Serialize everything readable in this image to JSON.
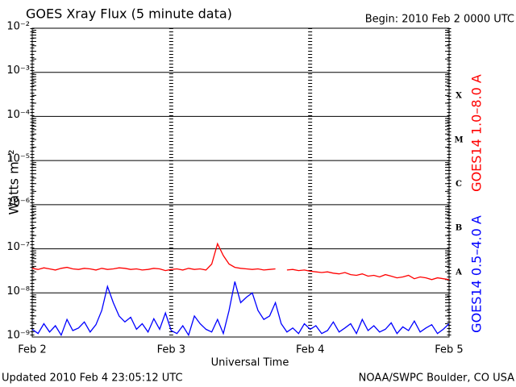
{
  "chart_data": {
    "type": "line",
    "title": "GOES Xray Flux (5 minute data)",
    "subtitle": "Begin:  2010 Feb 2 0000 UTC",
    "x_label": "Universal Time",
    "y_label": "Watts m⁻²",
    "footer_left": "Updated 2010 Feb  4 23:05:12 UTC",
    "footer_right": "NOAA/SWPC Boulder, CO USA",
    "flare_classes": [
      "A",
      "B",
      "C",
      "M",
      "X"
    ],
    "log_y": true,
    "grid": true,
    "ylim": [
      1e-09,
      0.01
    ],
    "yticks": [
      {
        "value": 1e-09,
        "label": "10⁻⁹"
      },
      {
        "value": 1e-08,
        "label": "10⁻⁸"
      },
      {
        "value": 1e-07,
        "label": "10⁻⁷"
      },
      {
        "value": 1e-06,
        "label": "10⁻⁶"
      },
      {
        "value": 1e-05,
        "label": "10⁻⁵"
      },
      {
        "value": 0.0001,
        "label": "10⁻⁴"
      },
      {
        "value": 0.001,
        "label": "10⁻³"
      },
      {
        "value": 0.01,
        "label": "10⁻²"
      }
    ],
    "xlim": [
      "2010-02-02 00:00",
      "2010-02-05 00:00"
    ],
    "xticks": [
      {
        "value": "2010-02-02 00:00",
        "label": "Feb 2"
      },
      {
        "value": "2010-02-03 00:00",
        "label": "Feb 3"
      },
      {
        "value": "2010-02-04 00:00",
        "label": "Feb 4"
      },
      {
        "value": "2010-02-05 00:00",
        "label": "Feb 5"
      }
    ],
    "x": [
      "2010-02-02 00:00",
      "2010-02-02 01:00",
      "2010-02-02 02:00",
      "2010-02-02 03:00",
      "2010-02-02 04:00",
      "2010-02-02 05:00",
      "2010-02-02 06:00",
      "2010-02-02 07:00",
      "2010-02-02 08:00",
      "2010-02-02 09:00",
      "2010-02-02 10:00",
      "2010-02-02 11:00",
      "2010-02-02 12:00",
      "2010-02-02 13:00",
      "2010-02-02 14:00",
      "2010-02-02 15:00",
      "2010-02-02 16:00",
      "2010-02-02 17:00",
      "2010-02-02 18:00",
      "2010-02-02 19:00",
      "2010-02-02 20:00",
      "2010-02-02 21:00",
      "2010-02-02 22:00",
      "2010-02-02 23:00",
      "2010-02-03 00:00",
      "2010-02-03 01:00",
      "2010-02-03 02:00",
      "2010-02-03 03:00",
      "2010-02-03 04:00",
      "2010-02-03 05:00",
      "2010-02-03 06:00",
      "2010-02-03 07:00",
      "2010-02-03 08:00",
      "2010-02-03 09:00",
      "2010-02-03 10:00",
      "2010-02-03 11:00",
      "2010-02-03 12:00",
      "2010-02-03 13:00",
      "2010-02-03 14:00",
      "2010-02-03 15:00",
      "2010-02-03 16:00",
      "2010-02-03 17:00",
      "2010-02-03 18:00",
      "2010-02-03 19:00",
      "2010-02-03 20:00",
      "2010-02-03 21:00",
      "2010-02-03 22:00",
      "2010-02-03 23:00",
      "2010-02-04 00:00",
      "2010-02-04 01:00",
      "2010-02-04 02:00",
      "2010-02-04 03:00",
      "2010-02-04 04:00",
      "2010-02-04 05:00",
      "2010-02-04 06:00",
      "2010-02-04 07:00",
      "2010-02-04 08:00",
      "2010-02-04 09:00",
      "2010-02-04 10:00",
      "2010-02-04 11:00",
      "2010-02-04 12:00",
      "2010-02-04 13:00",
      "2010-02-04 14:00",
      "2010-02-04 15:00",
      "2010-02-04 16:00",
      "2010-02-04 17:00",
      "2010-02-04 18:00",
      "2010-02-04 19:00",
      "2010-02-04 20:00",
      "2010-02-04 21:00",
      "2010-02-04 22:00",
      "2010-02-04 23:00",
      "2010-02-05 00:00"
    ],
    "series": [
      {
        "name": "GOES14 1.0–8.0 A",
        "color": "#ff0000",
        "values": [
          3.6e-08,
          3.4e-08,
          3.7e-08,
          3.5e-08,
          3.3e-08,
          3.6e-08,
          3.8e-08,
          3.5e-08,
          3.4e-08,
          3.6e-08,
          3.5e-08,
          3.3e-08,
          3.6e-08,
          3.4e-08,
          3.5e-08,
          3.7e-08,
          3.6e-08,
          3.4e-08,
          3.5e-08,
          3.3e-08,
          3.4e-08,
          3.6e-08,
          3.5e-08,
          3.2e-08,
          3.4e-08,
          3.5e-08,
          3.3e-08,
          3.6e-08,
          3.4e-08,
          3.5e-08,
          3.3e-08,
          4.5e-08,
          1.3e-07,
          7e-08,
          4.5e-08,
          3.8e-08,
          3.6e-08,
          3.5e-08,
          3.4e-08,
          3.5e-08,
          3.3e-08,
          3.4e-08,
          3.5e-08,
          null,
          3.3e-08,
          3.4e-08,
          3.2e-08,
          3.3e-08,
          3.1e-08,
          3e-08,
          2.9e-08,
          3e-08,
          2.8e-08,
          2.7e-08,
          2.9e-08,
          2.6e-08,
          2.5e-08,
          2.7e-08,
          2.4e-08,
          2.5e-08,
          2.3e-08,
          2.6e-08,
          2.4e-08,
          2.2e-08,
          2.3e-08,
          2.5e-08,
          2.1e-08,
          2.3e-08,
          2.2e-08,
          2e-08,
          2.2e-08,
          2.1e-08,
          2e-08
        ]
      },
      {
        "name": "GOES14 0.5–4.0 A",
        "color": "#0000ff",
        "values": [
          1.5e-09,
          1.2e-09,
          2e-09,
          1.3e-09,
          1.8e-09,
          1.1e-09,
          2.5e-09,
          1.4e-09,
          1.6e-09,
          2.2e-09,
          1.3e-09,
          1.9e-09,
          4e-09,
          1.4e-08,
          6e-09,
          3e-09,
          2.2e-09,
          2.8e-09,
          1.5e-09,
          2e-09,
          1.3e-09,
          2.6e-09,
          1.5e-09,
          3.5e-09,
          1.4e-09,
          1.2e-09,
          1.8e-09,
          1.1e-09,
          3e-09,
          2e-09,
          1.5e-09,
          1.3e-09,
          2.5e-09,
          1.2e-09,
          4e-09,
          1.8e-08,
          6e-09,
          8e-09,
          1e-08,
          4e-09,
          2.5e-09,
          3e-09,
          6e-09,
          2e-09,
          1.3e-09,
          1.6e-09,
          1.2e-09,
          2e-09,
          1.5e-09,
          1.8e-09,
          1.2e-09,
          1.4e-09,
          2.2e-09,
          1.3e-09,
          1.6e-09,
          2e-09,
          1.2e-09,
          2.5e-09,
          1.4e-09,
          1.8e-09,
          1.3e-09,
          1.5e-09,
          2.1e-09,
          1.2e-09,
          1.7e-09,
          1.4e-09,
          2.3e-09,
          1.3e-09,
          1.6e-09,
          1.9e-09,
          1.2e-09,
          1.5e-09,
          2e-09
        ]
      }
    ]
  }
}
